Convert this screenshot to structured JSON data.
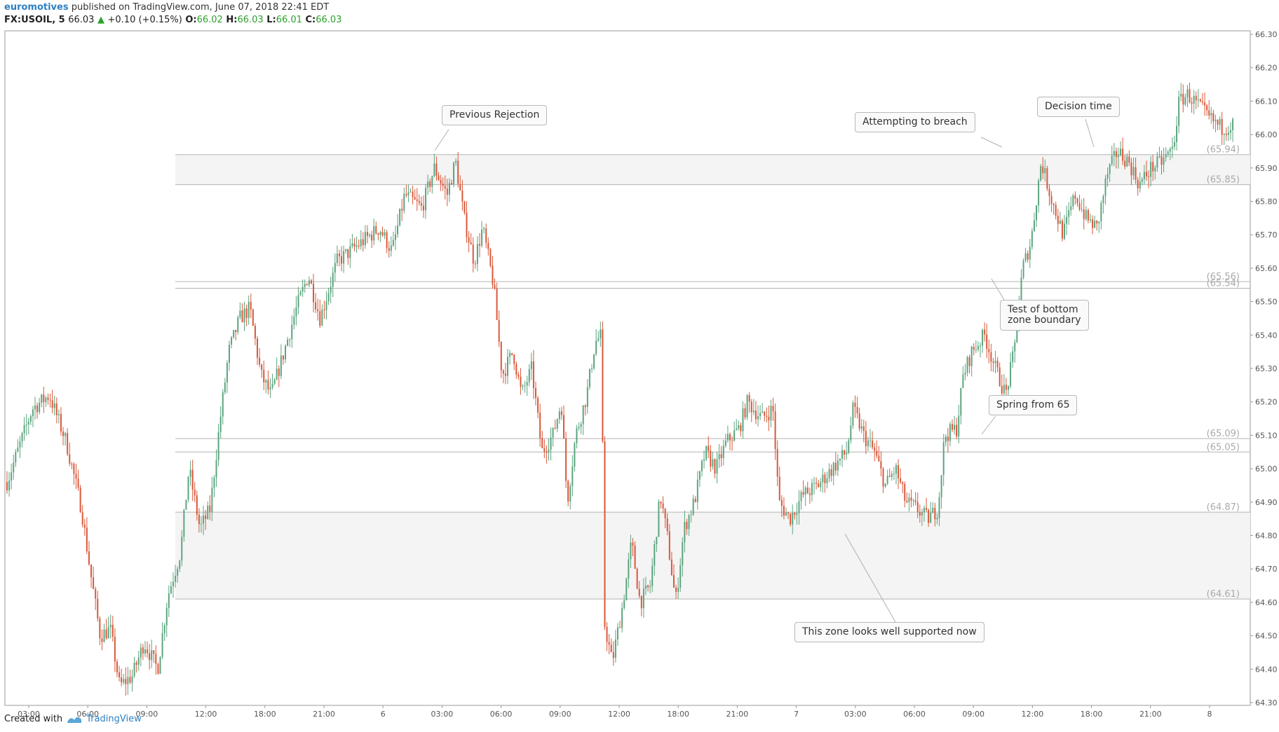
{
  "header": {
    "author": "euromotives",
    "published": "published on TradingView.com, June 07, 2018 22:41 EDT",
    "symbol": "FX:USOIL, 5",
    "last": "66.03",
    "change": "+0.10 (+0.15%)",
    "o_label": "O:",
    "o_value": "66.02",
    "h_label": "H:",
    "h_value": "66.03",
    "l_label": "L:",
    "l_value": "66.01",
    "c_label": "C:",
    "c_value": "66.03"
  },
  "footer": {
    "created_with": "Created with",
    "brand": "TradingView"
  },
  "colors": {
    "up": "#5ba47f",
    "down": "#d9583a",
    "grid_line": "#b4b4b4",
    "zone_fill": "#f4f4f4",
    "axis_text": "#555555"
  },
  "annotations": [
    {
      "text": "Previous Rejection"
    },
    {
      "text": "Attempting to breach"
    },
    {
      "text": "Decision time"
    },
    {
      "text": "Test of bottom\nzone boundary"
    },
    {
      "text": "Spring from 65"
    },
    {
      "text": "This zone looks well supported now"
    }
  ],
  "chart_data": {
    "type": "candlestick",
    "symbol": "FX:USOIL",
    "interval": "5",
    "ylim": [
      64.3,
      66.3
    ],
    "y_ticks": [
      "66.30",
      "66.20",
      "66.10",
      "66.00",
      "65.90",
      "65.80",
      "65.70",
      "65.60",
      "65.50",
      "65.40",
      "65.30",
      "65.20",
      "65.10",
      "65.00",
      "64.90",
      "64.80",
      "64.70",
      "64.60",
      "64.50",
      "64.40",
      "64.30"
    ],
    "x_ticks": [
      "03:00",
      "06:00",
      "09:00",
      "12:00",
      "18:00",
      "21:00",
      "6",
      "03:00",
      "06:00",
      "09:00",
      "12:00",
      "18:00",
      "21:00",
      "7",
      "03:00",
      "06:00",
      "09:00",
      "12:00",
      "18:00",
      "21:00",
      "8"
    ],
    "horizontal_levels": [
      {
        "value": 65.94,
        "label": "(65.94)"
      },
      {
        "value": 65.85,
        "label": "(65.85)"
      },
      {
        "value": 65.56,
        "label": "(65.56)"
      },
      {
        "value": 65.54,
        "label": "(65.54)"
      },
      {
        "value": 65.09,
        "label": "(65.09)"
      },
      {
        "value": 65.05,
        "label": "(65.05)"
      },
      {
        "value": 64.87,
        "label": "(64.87)"
      },
      {
        "value": 64.61,
        "label": "(64.61)"
      }
    ],
    "zones": [
      [
        65.85,
        65.94
      ],
      [
        64.61,
        64.87
      ]
    ],
    "price_path": [
      [
        0,
        64.96
      ],
      [
        30,
        65.18
      ],
      [
        50,
        65.22
      ],
      [
        70,
        65.08
      ],
      [
        88,
        64.88
      ],
      [
        98,
        64.7
      ],
      [
        110,
        64.5
      ],
      [
        122,
        64.52
      ],
      [
        133,
        64.35
      ],
      [
        148,
        64.38
      ],
      [
        162,
        64.48
      ],
      [
        178,
        64.4
      ],
      [
        190,
        64.62
      ],
      [
        205,
        64.75
      ],
      [
        215,
        65.0
      ],
      [
        228,
        64.82
      ],
      [
        240,
        64.88
      ],
      [
        252,
        65.15
      ],
      [
        262,
        65.35
      ],
      [
        275,
        65.45
      ],
      [
        287,
        65.48
      ],
      [
        300,
        65.28
      ],
      [
        312,
        65.22
      ],
      [
        325,
        65.33
      ],
      [
        342,
        65.48
      ],
      [
        356,
        65.58
      ],
      [
        370,
        65.45
      ],
      [
        390,
        65.62
      ],
      [
        405,
        65.65
      ],
      [
        420,
        65.68
      ],
      [
        440,
        65.72
      ],
      [
        455,
        65.65
      ],
      [
        470,
        65.82
      ],
      [
        490,
        65.78
      ],
      [
        505,
        65.9
      ],
      [
        520,
        65.82
      ],
      [
        530,
        65.92
      ],
      [
        540,
        65.75
      ],
      [
        552,
        65.62
      ],
      [
        562,
        65.72
      ],
      [
        575,
        65.55
      ],
      [
        585,
        65.28
      ],
      [
        598,
        65.35
      ],
      [
        608,
        65.22
      ],
      [
        620,
        65.3
      ],
      [
        632,
        65.05
      ],
      [
        645,
        65.1
      ],
      [
        655,
        65.2
      ],
      [
        662,
        64.9
      ],
      [
        672,
        65.1
      ],
      [
        685,
        65.22
      ],
      [
        695,
        65.38
      ],
      [
        703,
        65.4
      ],
      [
        705,
        64.55
      ],
      [
        715,
        64.42
      ],
      [
        728,
        64.6
      ],
      [
        738,
        64.78
      ],
      [
        748,
        64.6
      ],
      [
        760,
        64.65
      ],
      [
        772,
        64.92
      ],
      [
        780,
        64.8
      ],
      [
        790,
        64.6
      ],
      [
        800,
        64.82
      ],
      [
        812,
        64.9
      ],
      [
        825,
        65.05
      ],
      [
        838,
        65.0
      ],
      [
        850,
        65.08
      ],
      [
        865,
        65.12
      ],
      [
        875,
        65.2
      ],
      [
        892,
        65.15
      ],
      [
        905,
        65.18
      ],
      [
        912,
        64.9
      ],
      [
        925,
        64.85
      ],
      [
        940,
        64.92
      ],
      [
        958,
        64.95
      ],
      [
        975,
        65.0
      ],
      [
        992,
        65.05
      ],
      [
        1000,
        65.18
      ],
      [
        1012,
        65.1
      ],
      [
        1025,
        65.05
      ],
      [
        1038,
        64.95
      ],
      [
        1050,
        65.0
      ],
      [
        1062,
        64.9
      ],
      [
        1075,
        64.88
      ],
      [
        1088,
        64.85
      ],
      [
        1100,
        64.88
      ],
      [
        1108,
        65.1
      ],
      [
        1122,
        65.12
      ],
      [
        1130,
        65.28
      ],
      [
        1140,
        65.35
      ],
      [
        1155,
        65.4
      ],
      [
        1168,
        65.3
      ],
      [
        1180,
        65.22
      ],
      [
        1190,
        65.35
      ],
      [
        1200,
        65.6
      ],
      [
        1210,
        65.68
      ],
      [
        1222,
        65.92
      ],
      [
        1235,
        65.8
      ],
      [
        1248,
        65.7
      ],
      [
        1262,
        65.82
      ],
      [
        1275,
        65.75
      ],
      [
        1288,
        65.72
      ],
      [
        1300,
        65.88
      ],
      [
        1312,
        65.95
      ],
      [
        1325,
        65.92
      ],
      [
        1338,
        65.85
      ],
      [
        1352,
        65.9
      ],
      [
        1365,
        65.92
      ],
      [
        1378,
        65.96
      ],
      [
        1385,
        66.1
      ],
      [
        1395,
        66.12
      ],
      [
        1410,
        66.08
      ],
      [
        1420,
        66.05
      ],
      [
        1435,
        66.02
      ],
      [
        1450,
        66.03
      ]
    ]
  }
}
